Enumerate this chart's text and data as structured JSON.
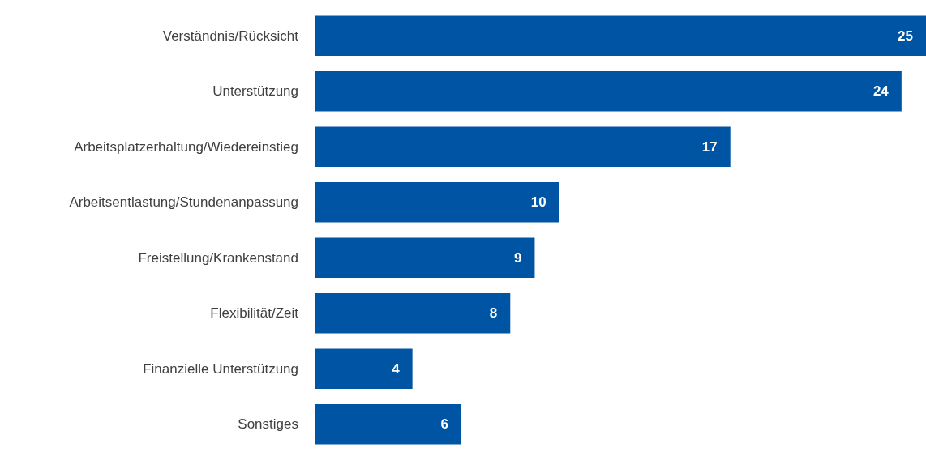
{
  "chart_data": {
    "type": "bar",
    "orientation": "horizontal",
    "categories": [
      "Verständnis/Rücksicht",
      "Unterstützung",
      "Arbeitsplatzerhaltung/Wiedereinstieg",
      "Arbeitsentlastung/Stundenanpassung",
      "Freistellung/Krankenstand",
      "Flexibilität/Zeit",
      "Finanzielle Unterstützung",
      "Sonstiges"
    ],
    "values": [
      25,
      24,
      17,
      10,
      9,
      8,
      4,
      6
    ],
    "color": "#0054a4",
    "data_labels": true
  }
}
